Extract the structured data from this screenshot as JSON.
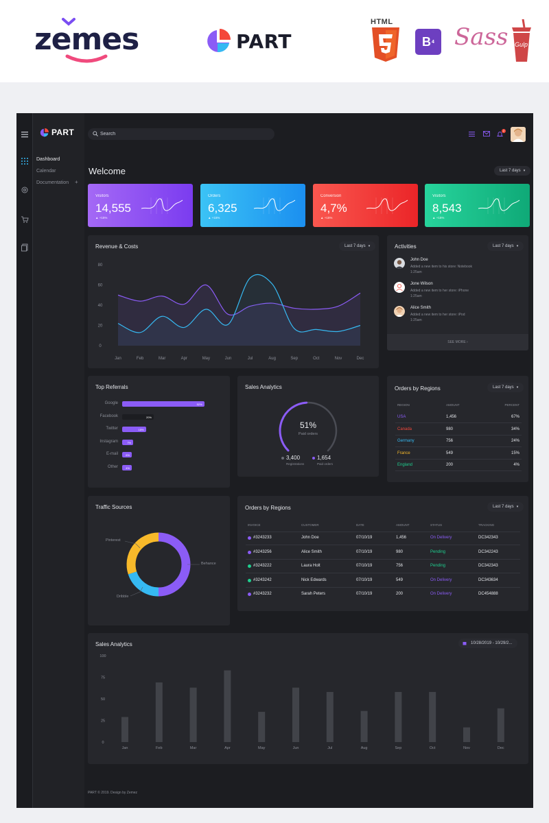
{
  "promo": {
    "zemes": "zemes",
    "part": "PART",
    "html5": "HTML",
    "bootstrap": "B",
    "bootstrap_ver": "4",
    "sass": "Sass",
    "gulp": "Gulp"
  },
  "app": {
    "brand": "PART",
    "nav": [
      {
        "label": "Dashboard"
      },
      {
        "label": "Calendar"
      },
      {
        "label": "Documentation"
      }
    ],
    "nav_plus": "+",
    "search_placeholder": "Search",
    "notif_count": "2",
    "welcome": "Welcome",
    "range": "Last 7 days",
    "stats": [
      {
        "label": "Visitors",
        "value": "14,555",
        "change": "+15%",
        "color1": "#a469f5",
        "color2": "#7b3cf0"
      },
      {
        "label": "Orders",
        "value": "6,325",
        "change": "+15%",
        "color1": "#3bc3f5",
        "color2": "#1b8ff0"
      },
      {
        "label": "Conversion",
        "value": "4,7%",
        "change": "+15%",
        "color1": "#f9574f",
        "color2": "#eb2528"
      },
      {
        "label": "Visitors",
        "value": "8,543",
        "change": "+15%",
        "color1": "#27d49c",
        "color2": "#0fa977"
      }
    ],
    "revenue": {
      "title": "Revenue & Costs",
      "range": "Last 7 days"
    },
    "activities": {
      "title": "Activities",
      "range": "Last 7 days",
      "items": [
        {
          "name": "John Doe",
          "desc": "Added a new item to his store: Notebook",
          "time": "1:25am"
        },
        {
          "name": "Jone Wilson",
          "desc": "Added a new item to her store: iPhone",
          "time": "1:25am"
        },
        {
          "name": "Alice Smith",
          "desc": "Added a new item to her store: iPod",
          "time": "1:25am"
        }
      ],
      "see_more": "SEE MORE"
    },
    "referrals": {
      "title": "Top Referrals",
      "items": [
        {
          "label": "Google",
          "pct": "52%",
          "value": 52
        },
        {
          "label": "Facebook",
          "pct": "20%",
          "value": 20
        },
        {
          "label": "Twitter",
          "pct": "15%",
          "value": 15
        },
        {
          "label": "Instagram",
          "pct": "7%",
          "value": 7
        },
        {
          "label": "E-mail",
          "pct": "6%",
          "value": 6
        },
        {
          "label": "Other",
          "pct": "4%",
          "value": 4
        }
      ]
    },
    "sales_gauge": {
      "title": "Sales Analytics",
      "pct": "51%",
      "value": 51,
      "sub": "Paid orders",
      "reg_value": "3,400",
      "reg_label": "Registrations",
      "paid_value": "1,654",
      "paid_label": "Paid orders"
    },
    "regions": {
      "title": "Orders by Regions",
      "range": "Last 7 days",
      "headers": [
        "REGION",
        "AMOUNT",
        "PERCENT"
      ],
      "rows": [
        {
          "region": "USA",
          "amount": "1,456",
          "percent": "67%",
          "color": "#8b5cf6"
        },
        {
          "region": "Canada",
          "amount": "980",
          "percent": "34%",
          "color": "#f4483b"
        },
        {
          "region": "Germany",
          "amount": "756",
          "percent": "24%",
          "color": "#36b9f2"
        },
        {
          "region": "France",
          "amount": "549",
          "percent": "15%",
          "color": "#f7b92a"
        },
        {
          "region": "England",
          "amount": "200",
          "percent": "4%",
          "color": "#1fcf8f"
        }
      ]
    },
    "traffic": {
      "title": "Traffic Sources",
      "labels": {
        "pinterest": "Pinterest",
        "behance": "Behance",
        "dribble": "Dribble"
      }
    },
    "orders": {
      "title": "Orders by Regions",
      "range": "Last 7 days",
      "headers": [
        "INVOICE",
        "CUSTOMER",
        "DATE",
        "AMOUNT",
        "STATUS",
        "TRACKING"
      ],
      "rows": [
        {
          "invoice": "#3243233",
          "customer": "John Doe",
          "date": "07/10/19",
          "amount": "1,456",
          "status": "On Delivery",
          "tracking": "DC342343",
          "dot": "#8b5cf6",
          "status_color": "#8b5cf6"
        },
        {
          "invoice": "#3243256",
          "customer": "Alice Smith",
          "date": "07/10/19",
          "amount": "980",
          "status": "Pending",
          "tracking": "DC342243",
          "dot": "#8b5cf6",
          "status_color": "#1fcf8f"
        },
        {
          "invoice": "#3243222",
          "customer": "Laura Holt",
          "date": "07/10/19",
          "amount": "756",
          "status": "Pending",
          "tracking": "DC342343",
          "dot": "#1fcf8f",
          "status_color": "#1fcf8f"
        },
        {
          "invoice": "#3243242",
          "customer": "Nick Edwards",
          "date": "07/10/19",
          "amount": "549",
          "status": "On Delivery",
          "tracking": "DC343634",
          "dot": "#1fcf8f",
          "status_color": "#8b5cf6"
        },
        {
          "invoice": "#3243232",
          "customer": "Sarah Peters",
          "date": "07/10/19",
          "amount": "200",
          "status": "On Delivery",
          "tracking": "DC454888",
          "dot": "#8b5cf6",
          "status_color": "#8b5cf6"
        }
      ]
    },
    "sales_bars": {
      "title": "Sales Analytics",
      "range": "10/28/2019 - 10/29/2..."
    },
    "footer": "PART  © 2019. Design by Zemez"
  },
  "chart_data": [
    {
      "type": "line",
      "title": "Revenue & Costs",
      "categories": [
        "Jan",
        "Feb",
        "Mar",
        "Apr",
        "May",
        "Jun",
        "Jul",
        "Aug",
        "Sep",
        "Oct",
        "Nov",
        "Dec"
      ],
      "ylim": [
        0,
        80
      ],
      "yticks": [
        0,
        20,
        40,
        60,
        80
      ],
      "series": [
        {
          "values": [
            50,
            44,
            49,
            41,
            60,
            31,
            39,
            42,
            37,
            36,
            39,
            52
          ],
          "color": "#8b5cf6"
        },
        {
          "values": [
            22,
            13,
            29,
            18,
            36,
            21,
            67,
            61,
            17,
            16,
            14,
            20
          ],
          "color": "#36b9f2"
        }
      ]
    },
    {
      "type": "bar",
      "title": "Top Referrals",
      "categories": [
        "Google",
        "Facebook",
        "Twitter",
        "Instagram",
        "E-mail",
        "Other"
      ],
      "values": [
        52,
        20,
        15,
        7,
        6,
        4
      ]
    },
    {
      "type": "pie",
      "title": "Traffic Sources",
      "categories": [
        "Behance",
        "Dribble",
        "Pinterest"
      ],
      "values": [
        50,
        20,
        30
      ],
      "colors": [
        "#8b5cf6",
        "#36b9f2",
        "#f7b92a"
      ]
    },
    {
      "type": "bar",
      "title": "Sales Analytics",
      "categories": [
        "Jan",
        "Feb",
        "Mar",
        "Apr",
        "May",
        "Jun",
        "Jul",
        "Aug",
        "Sep",
        "Oct",
        "Nov",
        "Dec"
      ],
      "values": [
        29,
        69,
        63,
        83,
        35,
        63,
        58,
        36,
        58,
        58,
        17,
        39
      ],
      "ylim": [
        0,
        100
      ],
      "yticks": [
        0,
        25,
        50,
        75,
        100
      ]
    }
  ]
}
